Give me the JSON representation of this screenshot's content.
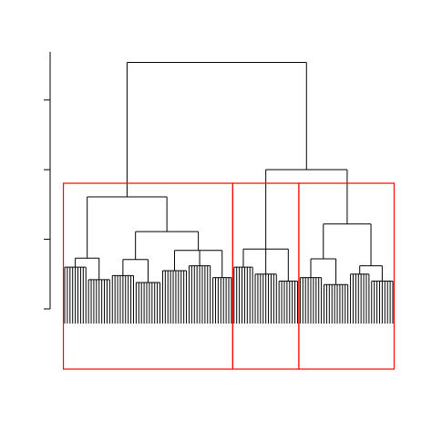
{
  "chart_data": {
    "type": "dendrogram",
    "ylim": [
      0,
      3.69
    ],
    "yticks": [
      0,
      1,
      2,
      3
    ],
    "rect_clusters": 3,
    "rect_color": "#ff0000",
    "color": "#000000",
    "tree": {
      "height": 3.54,
      "children": [
        {
          "height": 1.61,
          "children": [
            {
              "height": 0.73,
              "children": [
                {
                  "height": 0.6,
                  "leaves": 9
                },
                {
                  "height": 0.42,
                  "leaves": 9
                }
              ]
            },
            {
              "height": 1.11,
              "children": [
                {
                  "height": 0.71,
                  "children": [
                    {
                      "height": 0.48,
                      "leaves": 9
                    },
                    {
                      "height": 0.38,
                      "leaves": 10
                    }
                  ]
                },
                {
                  "height": 0.84,
                  "children": [
                    {
                      "height": 0.55,
                      "leaves": 10
                    },
                    {
                      "height": 0.62,
                      "leaves": 9
                    },
                    {
                      "height": 0.45,
                      "leaves": 8
                    }
                  ]
                }
              ]
            }
          ]
        },
        {
          "height": 2.0,
          "children": [
            {
              "height": 0.86,
              "children": [
                {
                  "height": 0.6,
                  "leaves": 8
                },
                {
                  "height": 0.5,
                  "leaves": 9
                },
                {
                  "height": 0.4,
                  "leaves": 8
                }
              ]
            },
            {
              "height": 1.22,
              "children": [
                {
                  "height": 0.72,
                  "children": [
                    {
                      "height": 0.45,
                      "leaves": 9
                    },
                    {
                      "height": 0.35,
                      "leaves": 10
                    }
                  ]
                },
                {
                  "height": 0.62,
                  "children": [
                    {
                      "height": 0.5,
                      "leaves": 8
                    },
                    {
                      "height": 0.4,
                      "leaves": 9
                    }
                  ]
                }
              ]
            }
          ]
        }
      ]
    }
  }
}
